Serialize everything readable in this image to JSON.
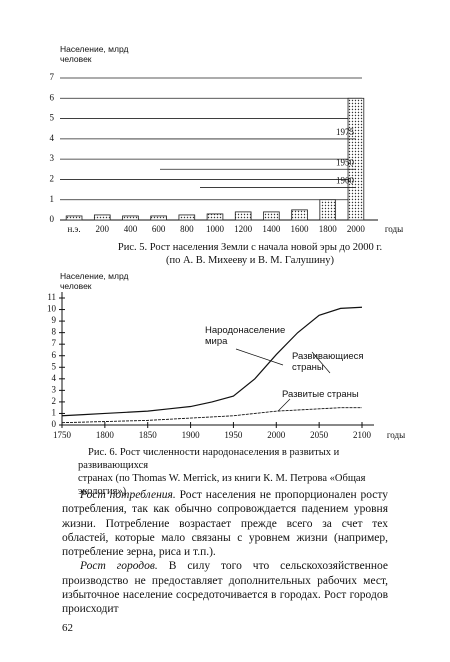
{
  "chart_data": [
    {
      "type": "bar",
      "y_label": "Население, млрд человек",
      "x_label": "годы",
      "categories": [
        "н.э.",
        "200",
        "400",
        "600",
        "800",
        "1000",
        "1200",
        "1400",
        "1600",
        "1800",
        "2000"
      ],
      "values": [
        0.2,
        0.25,
        0.2,
        0.2,
        0.25,
        0.3,
        0.4,
        0.4,
        0.5,
        1.0,
        6.0
      ],
      "color": "#222",
      "ylim": [
        0,
        7
      ],
      "yticks": [
        0,
        1,
        2,
        3,
        4,
        5,
        6,
        7
      ],
      "grid": true,
      "annotations": [
        {
          "label": "1975",
          "value": 4
        },
        {
          "label": "1950",
          "value": 2.5
        },
        {
          "label": "1900",
          "value": 1.6
        }
      ],
      "caption": [
        "Рис. 5. Рост населения Земли с начала новой эры до 2000 г.",
        "(по А. В. Михееву и В. М. Галушину)"
      ]
    },
    {
      "type": "line",
      "y_label": "Население, млрд человек",
      "x_label": "годы",
      "x": [
        1750,
        1775,
        1800,
        1825,
        1850,
        1875,
        1900,
        1925,
        1950,
        1975,
        2000,
        2025,
        2050,
        2075,
        2100
      ],
      "series": [
        {
          "name": "Народонаселение мира",
          "color": "#111",
          "values": [
            0.8,
            0.9,
            1.0,
            1.1,
            1.2,
            1.4,
            1.6,
            2.0,
            2.5,
            4.0,
            6.1,
            8.0,
            9.5,
            10.1,
            10.2
          ]
        },
        {
          "name": "Развитые страны",
          "color": "#111",
          "values": [
            0.2,
            0.25,
            0.3,
            0.35,
            0.4,
            0.5,
            0.6,
            0.7,
            0.8,
            1.0,
            1.2,
            1.3,
            1.4,
            1.5,
            1.5
          ]
        }
      ],
      "annotation": "Развивающиеся страны",
      "xlim": [
        1750,
        2100
      ],
      "xticks": [
        1750,
        1800,
        1850,
        1900,
        1950,
        2000,
        2050,
        2100
      ],
      "ylim": [
        0,
        11
      ],
      "yticks": [
        0,
        1,
        2,
        3,
        4,
        5,
        6,
        7,
        8,
        9,
        10,
        11
      ],
      "caption": [
        "Рис. 6. Рост численности народонаселения в развитых и развивающихся",
        "странах (по Thomas W. Merrick, из книги К. М. Петрова «Общая экология»)"
      ]
    }
  ],
  "paragraphs": [
    {
      "lead": "Рост потребления.",
      "text": "Рост населения не пропорционален росту потребления, так как обычно сопровождается падением уровня жизни. Потребление возрастает прежде всего за счет тех областей, которые мало связаны с уровнем жизни (например, потребление зерна, риса и т.п.)."
    },
    {
      "lead": "Рост городов.",
      "text": "В силу того что сельскохозяйственное производство не предоставляет дополнительных рабочих мест, избыточное население сосредоточивается в городах. Рост городов происходит"
    }
  ],
  "page_number": "62"
}
